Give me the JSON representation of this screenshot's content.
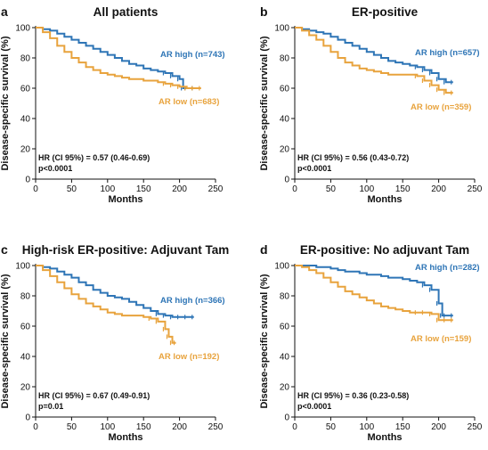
{
  "colors": {
    "ar_high": "#2e75b6",
    "ar_low": "#e8a33d",
    "axis": "#111111"
  },
  "chart_data": [
    {
      "type": "line",
      "panel": "a",
      "title": "All patients",
      "xlabel": "Months",
      "ylabel": "Disease-specific survival (%)",
      "xlim": [
        0,
        250
      ],
      "ylim": [
        0,
        100
      ],
      "xticks": [
        0,
        50,
        100,
        150,
        200,
        250
      ],
      "yticks": [
        0,
        20,
        40,
        60,
        80,
        100
      ],
      "annotations": [
        "HR (CI 95%) = 0.57 (0.46-0.69)",
        "p<0.0001"
      ],
      "series": [
        {
          "name": "AR high (n=743)",
          "color": "#2e75b6",
          "x": [
            0,
            10,
            20,
            30,
            40,
            50,
            60,
            70,
            80,
            90,
            100,
            110,
            120,
            130,
            140,
            150,
            160,
            170,
            180,
            190,
            200,
            205,
            210,
            220
          ],
          "y": [
            100,
            99,
            98,
            96,
            94,
            92,
            90,
            88,
            86,
            84,
            82,
            80,
            78,
            76,
            75,
            73,
            72,
            71,
            70,
            68,
            66,
            60,
            60,
            60
          ]
        },
        {
          "name": "AR low (n=683)",
          "color": "#e8a33d",
          "x": [
            0,
            10,
            20,
            30,
            40,
            50,
            60,
            70,
            80,
            90,
            100,
            110,
            120,
            130,
            140,
            150,
            160,
            170,
            180,
            190,
            200,
            210,
            220,
            230
          ],
          "y": [
            100,
            97,
            93,
            88,
            84,
            80,
            77,
            74,
            72,
            70,
            69,
            68,
            67,
            66,
            66,
            65,
            65,
            64,
            63,
            62,
            61,
            60,
            60,
            60
          ]
        }
      ]
    },
    {
      "type": "line",
      "panel": "b",
      "title": "ER-positive",
      "xlabel": "Months",
      "ylabel": "Disease-specific survival (%)",
      "xlim": [
        0,
        250
      ],
      "ylim": [
        0,
        100
      ],
      "xticks": [
        0,
        50,
        100,
        150,
        200,
        250
      ],
      "yticks": [
        0,
        20,
        40,
        60,
        80,
        100
      ],
      "annotations": [
        "HR (CI 95%) = 0.56 (0.43-0.72)",
        "p<0.0001"
      ],
      "series": [
        {
          "name": "AR high (n=657)",
          "color": "#2e75b6",
          "x": [
            0,
            10,
            20,
            30,
            40,
            50,
            60,
            70,
            80,
            90,
            100,
            110,
            120,
            130,
            140,
            150,
            160,
            170,
            180,
            190,
            200,
            210,
            220
          ],
          "y": [
            100,
            99,
            98,
            97,
            96,
            94,
            92,
            90,
            88,
            86,
            84,
            82,
            80,
            78,
            77,
            76,
            75,
            74,
            72,
            70,
            66,
            64,
            64
          ]
        },
        {
          "name": "AR low (n=359)",
          "color": "#e8a33d",
          "x": [
            0,
            10,
            20,
            30,
            40,
            50,
            60,
            70,
            80,
            90,
            100,
            110,
            120,
            130,
            140,
            150,
            160,
            170,
            180,
            190,
            200,
            210,
            220
          ],
          "y": [
            100,
            98,
            95,
            92,
            88,
            84,
            80,
            77,
            75,
            73,
            72,
            71,
            70,
            69,
            69,
            69,
            69,
            68,
            65,
            62,
            59,
            57,
            57
          ]
        }
      ]
    },
    {
      "type": "line",
      "panel": "c",
      "title": "High-risk ER-positive: Adjuvant Tam",
      "xlabel": "Months",
      "ylabel": "Disease-specific survival (%)",
      "xlim": [
        0,
        250
      ],
      "ylim": [
        0,
        100
      ],
      "xticks": [
        0,
        50,
        100,
        150,
        200,
        250
      ],
      "yticks": [
        0,
        20,
        40,
        60,
        80,
        100
      ],
      "annotations": [
        "HR (CI 95%) = 0.67 (0.49-0.91)",
        "p=0.01"
      ],
      "series": [
        {
          "name": "AR high (n=366)",
          "color": "#2e75b6",
          "x": [
            0,
            10,
            20,
            30,
            40,
            50,
            60,
            70,
            80,
            90,
            100,
            110,
            120,
            130,
            140,
            150,
            160,
            170,
            180,
            190,
            200,
            210,
            220
          ],
          "y": [
            100,
            99,
            98,
            96,
            94,
            92,
            89,
            87,
            84,
            82,
            80,
            79,
            78,
            76,
            74,
            72,
            70,
            68,
            67,
            66,
            66,
            66,
            66
          ]
        },
        {
          "name": "AR low (n=192)",
          "color": "#e8a33d",
          "x": [
            0,
            10,
            20,
            30,
            40,
            50,
            60,
            70,
            80,
            90,
            100,
            110,
            120,
            130,
            140,
            150,
            160,
            170,
            180,
            185,
            190,
            195
          ],
          "y": [
            100,
            97,
            93,
            89,
            85,
            81,
            78,
            75,
            73,
            71,
            69,
            68,
            67,
            67,
            67,
            66,
            65,
            63,
            58,
            53,
            49,
            49
          ]
        }
      ]
    },
    {
      "type": "line",
      "panel": "d",
      "title": "ER-positive: No adjuvant Tam",
      "xlabel": "Months",
      "ylabel": "Disease-specific survival (%)",
      "xlim": [
        0,
        250
      ],
      "ylim": [
        0,
        100
      ],
      "xticks": [
        0,
        50,
        100,
        150,
        200,
        250
      ],
      "yticks": [
        0,
        20,
        40,
        60,
        80,
        100
      ],
      "annotations": [
        "HR (CI 95%) = 0.36 (0.23-0.58)",
        "p<0.0001"
      ],
      "series": [
        {
          "name": "AR high (n=282)",
          "color": "#2e75b6",
          "x": [
            0,
            10,
            20,
            30,
            40,
            50,
            60,
            70,
            80,
            90,
            100,
            110,
            120,
            130,
            140,
            150,
            160,
            170,
            180,
            190,
            200,
            205,
            210,
            220
          ],
          "y": [
            100,
            100,
            100,
            99,
            99,
            98,
            97,
            96,
            96,
            95,
            94,
            94,
            93,
            92,
            92,
            91,
            90,
            89,
            87,
            84,
            75,
            67,
            67,
            67
          ]
        },
        {
          "name": "AR low (n=159)",
          "color": "#e8a33d",
          "x": [
            0,
            10,
            20,
            30,
            40,
            50,
            60,
            70,
            80,
            90,
            100,
            110,
            120,
            130,
            140,
            150,
            160,
            170,
            180,
            190,
            200,
            210,
            220
          ],
          "y": [
            100,
            99,
            97,
            95,
            92,
            89,
            86,
            83,
            81,
            79,
            77,
            75,
            73,
            72,
            71,
            70,
            69,
            69,
            69,
            68,
            64,
            64,
            64
          ]
        }
      ]
    }
  ]
}
